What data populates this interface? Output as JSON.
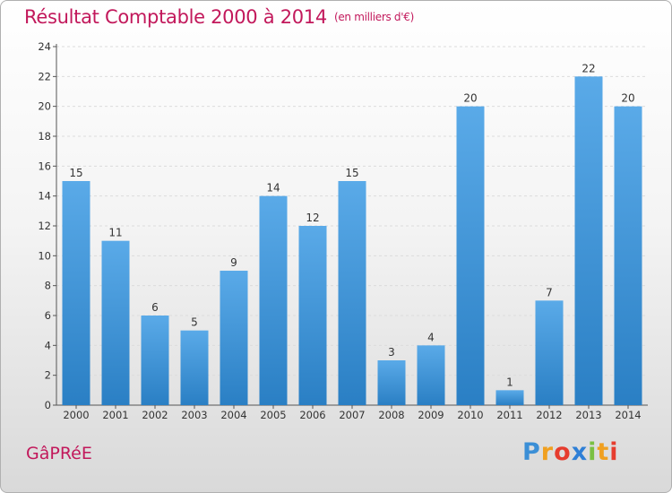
{
  "chart_data": {
    "type": "bar",
    "title": "Résultat Comptable 2000 à 2014",
    "unit_note": "(en milliers d'€)",
    "categories": [
      "2000",
      "2001",
      "2002",
      "2003",
      "2004",
      "2005",
      "2006",
      "2007",
      "2008",
      "2009",
      "2010",
      "2011",
      "2012",
      "2013",
      "2014"
    ],
    "values": [
      15,
      11,
      6,
      5,
      9,
      14,
      12,
      15,
      3,
      4,
      20,
      1,
      7,
      22,
      20
    ],
    "yticks": [
      0,
      2,
      4,
      6,
      8,
      10,
      12,
      14,
      16,
      18,
      20,
      22,
      24
    ],
    "ylim": [
      0,
      24
    ],
    "xlabel": "",
    "ylabel": "",
    "grid": true,
    "bar_color_top": "#5aaae8",
    "bar_color_bottom": "#2a7fc4"
  },
  "footer": {
    "commune": "GâPRéE"
  },
  "logo": {
    "text": "Proxiti",
    "letter_colors": [
      "#3b8fd6",
      "#f0a020",
      "#e63c2e",
      "#2e7fd6",
      "#7ac043",
      "#f0a020",
      "#e63c2e"
    ]
  }
}
